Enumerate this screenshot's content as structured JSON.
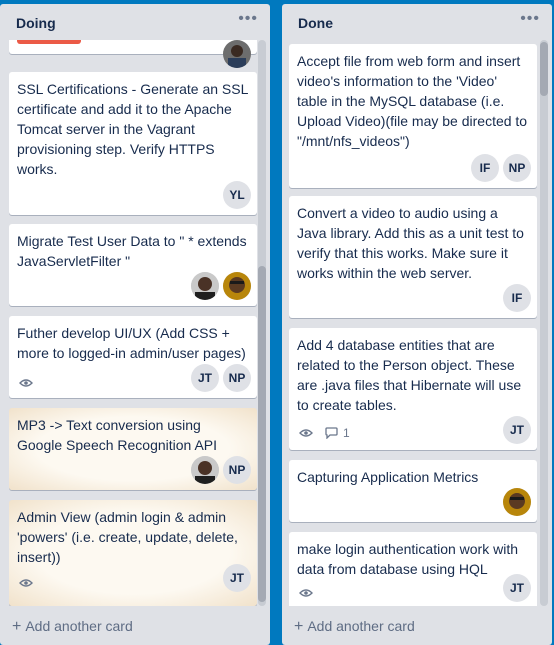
{
  "colors": {
    "board": "#0079bf",
    "list": "#dfe1e6",
    "label_red": "#eb5a46"
  },
  "lists": [
    {
      "title": "Doing",
      "menu": "•••",
      "add_card": "Add another card",
      "cards": [
        {
          "text": ""
        },
        {
          "text": "SSL Certifications - Generate an SSL certificate and add it to the Apache Tomcat server in the Vagrant provisioning step. Verify HTTPS works.",
          "members": [
            "YL"
          ]
        },
        {
          "text": "Migrate Test User Data to \" * extends JavaServletFilter \""
        },
        {
          "text": "Futher develop UI/UX (Add CSS + more to logged-in admin/user pages)",
          "members": [
            "JT",
            "NP"
          ]
        },
        {
          "text": "MP3 -> Text conversion using Google Speech Recognition API",
          "members": [
            "NP"
          ]
        },
        {
          "text": "Admin View (admin login & admin 'powers' (i.e. create, update, delete, insert))",
          "members": [
            "JT"
          ]
        }
      ]
    },
    {
      "title": "Done",
      "menu": "•••",
      "add_card": "Add another card",
      "cards": [
        {
          "text": "Accept file from web form and insert video's information to the 'Video' table in the MySQL database (i.e. Upload Video)(file may be directed to \"/mnt/nfs_videos\")",
          "members": [
            "IF",
            "NP"
          ]
        },
        {
          "text": "Convert a video to audio using a Java library. Add this as a unit test to verify that this works. Make sure it works within the web server.",
          "members": [
            "IF"
          ]
        },
        {
          "text": "Add 4 database entities that are related to the Person object. These are .java files that Hibernate will use to create tables.",
          "comments": "1",
          "members": [
            "JT"
          ]
        },
        {
          "text": "Capturing Application Metrics"
        },
        {
          "text": "make login authentication work with data from database using HQL",
          "members": [
            "JT"
          ]
        }
      ]
    }
  ]
}
